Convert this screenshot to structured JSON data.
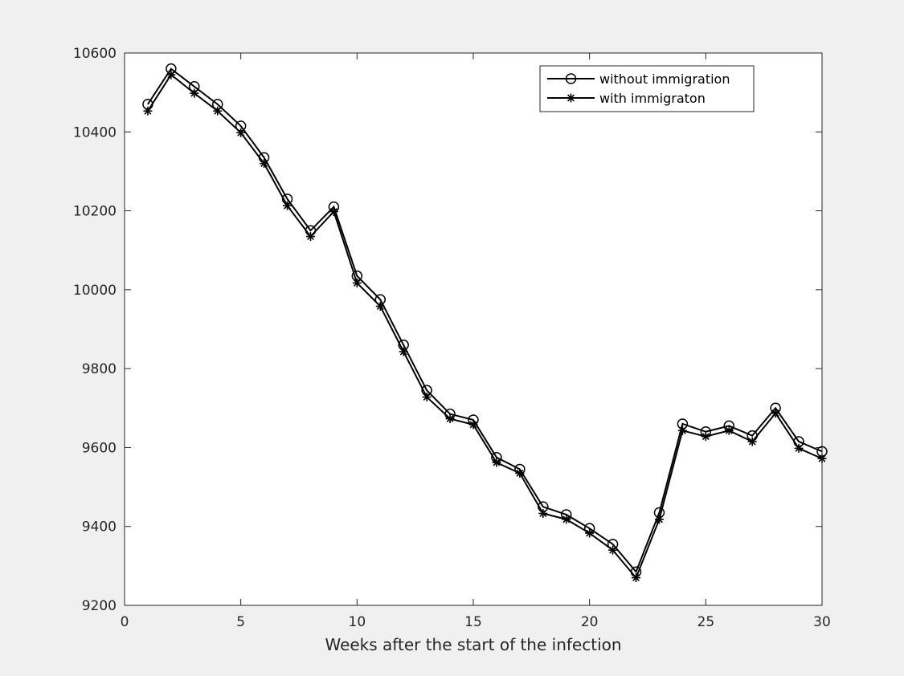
{
  "chart_data": {
    "type": "line",
    "title": "",
    "xlabel": "Weeks after the start of the infection",
    "ylabel": "",
    "xlim": [
      0,
      30
    ],
    "ylim": [
      9200,
      10600
    ],
    "xticks": [
      0,
      5,
      10,
      15,
      20,
      25,
      30
    ],
    "yticks": [
      9200,
      9400,
      9600,
      9800,
      10000,
      10200,
      10400,
      10600
    ],
    "grid": false,
    "legend_position": "top-right",
    "x": [
      1,
      2,
      3,
      4,
      5,
      6,
      7,
      8,
      9,
      10,
      11,
      12,
      13,
      14,
      15,
      16,
      17,
      18,
      19,
      20,
      21,
      22,
      23,
      24,
      25,
      26,
      27,
      28,
      29,
      30
    ],
    "series": [
      {
        "name": "without immigration",
        "marker": "circle",
        "color": "#000000",
        "values": [
          10470,
          10560,
          10515,
          10470,
          10415,
          10335,
          10230,
          10150,
          10210,
          10035,
          9975,
          9860,
          9745,
          9685,
          9670,
          9575,
          9545,
          9450,
          9430,
          9395,
          9355,
          9285,
          9435,
          9660,
          9640,
          9655,
          9630,
          9700,
          9615,
          9590
        ]
      },
      {
        "name": "with immigraton",
        "marker": "star",
        "color": "#000000",
        "values": [
          10453,
          10545,
          10498,
          10453,
          10398,
          10320,
          10213,
          10135,
          10198,
          10017,
          9958,
          9843,
          9728,
          9673,
          9658,
          9562,
          9535,
          9433,
          9418,
          9383,
          9340,
          9270,
          9418,
          9643,
          9628,
          9643,
          9615,
          9687,
          9598,
          9572
        ]
      }
    ]
  }
}
